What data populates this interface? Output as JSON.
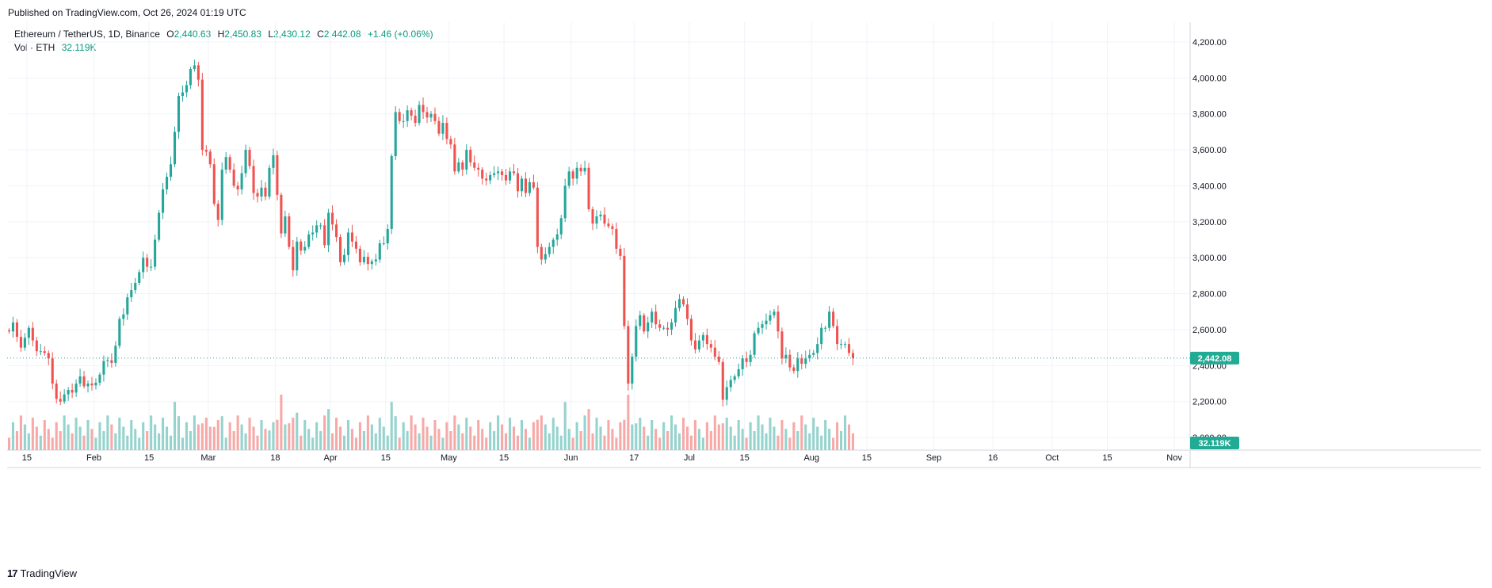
{
  "header": {
    "published": "Published on TradingView.com, Oct 26, 2024 01:19 UTC"
  },
  "legend": {
    "symbol": "Ethereum / TetherUS, 1D, Binance",
    "open_label": "O",
    "open": "2,440.63",
    "high_label": "H",
    "high": "2,450.83",
    "low_label": "L",
    "low": "2,430.12",
    "close_label": "C",
    "close": "2,442.08",
    "change": "+1.46 (+0.06%)",
    "vol_label": "Vol · ETH",
    "vol_value": "32.119K"
  },
  "footer": {
    "brand": "TradingView",
    "logo": "17"
  },
  "colors": {
    "up": "#26a69a",
    "down": "#ef5350",
    "up_vol": "#95d3cd",
    "down_vol": "#f7a9a7",
    "label_bg": "#22ab94",
    "grid": "#f0f3fa"
  },
  "chart_data": {
    "type": "candlestick",
    "symbol": "ETH/USDT",
    "interval": "1D",
    "price_axis": {
      "ylim": [
        1930,
        4310
      ],
      "ticks": [
        2000,
        2200,
        2400,
        2600,
        2800,
        3000,
        3200,
        3400,
        3600,
        3800,
        4000,
        4200
      ],
      "tick_labels": [
        "2,000.00",
        "2,200.00",
        "2,400.00",
        "2,600.00",
        "2,800.00",
        "3,000.00",
        "3,200.00",
        "3,400.00",
        "3,600.00",
        "3,800.00",
        "4,000.00",
        "4,200.00"
      ]
    },
    "time_axis": {
      "start_date": "2024-01-10",
      "end_date": "2024-11-05",
      "ticks": [
        {
          "date": "2024-01-15",
          "label": "15"
        },
        {
          "date": "2024-02-01",
          "label": "Feb"
        },
        {
          "date": "2024-02-15",
          "label": "15"
        },
        {
          "date": "2024-03-01",
          "label": "Mar"
        },
        {
          "date": "2024-03-18",
          "label": "18"
        },
        {
          "date": "2024-04-01",
          "label": "Apr"
        },
        {
          "date": "2024-04-15",
          "label": "15"
        },
        {
          "date": "2024-05-01",
          "label": "May"
        },
        {
          "date": "2024-05-15",
          "label": "15"
        },
        {
          "date": "2024-06-01",
          "label": "Jun"
        },
        {
          "date": "2024-06-17",
          "label": "17"
        },
        {
          "date": "2024-07-01",
          "label": "Jul"
        },
        {
          "date": "2024-07-15",
          "label": "15"
        },
        {
          "date": "2024-08-01",
          "label": "Aug"
        },
        {
          "date": "2024-08-15",
          "label": "15"
        },
        {
          "date": "2024-09-01",
          "label": "Sep"
        },
        {
          "date": "2024-09-16",
          "label": "16"
        },
        {
          "date": "2024-10-01",
          "label": "Oct"
        },
        {
          "date": "2024-10-15",
          "label": "15"
        },
        {
          "date": "2024-11-01",
          "label": "Nov"
        }
      ]
    },
    "last_price": 2442.08,
    "last_price_label": "2,442.08",
    "last_volume_label": "32.119K",
    "series": [
      {
        "name": "Ethereum / TetherUS",
        "closes": [
          2590,
          2640,
          2560,
          2500,
          2555,
          2610,
          2540,
          2480,
          2480,
          2470,
          2440,
          2300,
          2215,
          2200,
          2240,
          2265,
          2250,
          2300,
          2340,
          2285,
          2300,
          2290,
          2305,
          2350,
          2425,
          2430,
          2415,
          2510,
          2660,
          2685,
          2780,
          2820,
          2860,
          2920,
          3000,
          2950,
          2950,
          3100,
          3250,
          3380,
          3450,
          3520,
          3700,
          3900,
          3920,
          3960,
          4050,
          4070,
          3990,
          3600,
          3590,
          3520,
          3300,
          3210,
          3490,
          3560,
          3490,
          3400,
          3380,
          3470,
          3600,
          3510,
          3360,
          3340,
          3390,
          3340,
          3500,
          3570,
          3350,
          3135,
          3230,
          3060,
          2930,
          3090,
          3040,
          3060,
          3130,
          3140,
          3180,
          3180,
          3070,
          3250,
          3185,
          3115,
          2975,
          3015,
          3140,
          3090,
          3050,
          2975,
          3005,
          2965,
          2980,
          2990,
          3080,
          3080,
          3160,
          3565,
          3810,
          3760,
          3760,
          3820,
          3790,
          3750,
          3850,
          3810,
          3780,
          3800,
          3760,
          3690,
          3750,
          3660,
          3630,
          3480,
          3530,
          3490,
          3600,
          3530,
          3500,
          3490,
          3440,
          3430,
          3460,
          3470,
          3480,
          3460,
          3430,
          3480,
          3470,
          3370,
          3440,
          3360,
          3420,
          3390,
          3060,
          2990,
          3020,
          3060,
          3100,
          3130,
          3220,
          3400,
          3480,
          3440,
          3500,
          3480,
          3500,
          3270,
          3190,
          3230,
          3240,
          3190,
          3175,
          3160,
          3050,
          3010,
          2620,
          2300,
          2450,
          2620,
          2680,
          2590,
          2640,
          2700,
          2630,
          2610,
          2610,
          2600,
          2640,
          2720,
          2770,
          2740,
          2660,
          2540,
          2490,
          2540,
          2570,
          2520,
          2500,
          2450,
          2420,
          2210,
          2280,
          2320,
          2340,
          2380,
          2440,
          2420,
          2460,
          2580,
          2610,
          2630,
          2650,
          2680,
          2700,
          2590,
          2440,
          2460,
          2390,
          2370,
          2440,
          2410,
          2440,
          2460,
          2470,
          2520,
          2610,
          2610,
          2700,
          2620,
          2520,
          2520,
          2520,
          2470,
          2442
        ]
      }
    ],
    "volume_axis_max": 9
  }
}
